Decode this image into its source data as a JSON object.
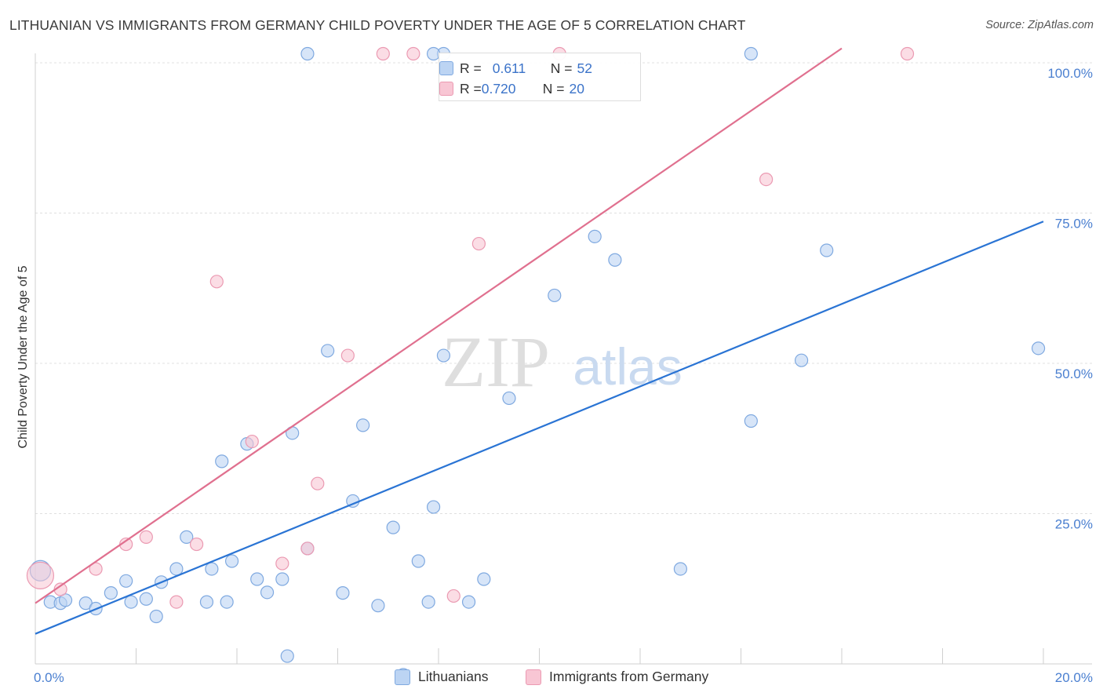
{
  "title": "LITHUANIAN VS IMMIGRANTS FROM GERMANY CHILD POVERTY UNDER THE AGE OF 5 CORRELATION CHART",
  "source": "Source: ZipAtlas.com",
  "watermark": {
    "zip": "ZIP",
    "atlas": "atlas"
  },
  "colors": {
    "blue_fill": "#bcd4f3",
    "blue_stroke": "#7fa9e0",
    "blue_line": "#2a74d4",
    "pink_fill": "#f8c6d4",
    "pink_stroke": "#eb9ab2",
    "pink_line": "#e0708f",
    "tick_text": "#4a7fd0"
  },
  "stats": [
    {
      "r_label": "R = ",
      "r_value": "0.611",
      "n_label": "N = ",
      "n_value": "52"
    },
    {
      "r_label": "R = ",
      "r_value": "0.720",
      "n_label": "N = ",
      "n_value": "20"
    }
  ],
  "legend": {
    "series1": "Lithuanians",
    "series2": "Immigrants from Germany"
  },
  "chart_data": {
    "type": "scatter",
    "title": "LITHUANIAN VS IMMIGRANTS FROM GERMANY CHILD POVERTY UNDER THE AGE OF 5 CORRELATION CHART",
    "xlabel": "",
    "ylabel": "Child Poverty Under the Age of 5",
    "xlim": [
      0,
      20
    ],
    "ylim": [
      0,
      100
    ],
    "x_tick_labels": [
      "0.0%",
      "20.0%"
    ],
    "y_tick_labels": [
      "100.0%",
      "75.0%",
      "50.0%",
      "25.0%"
    ],
    "y_tick_values": [
      100,
      75,
      50,
      25
    ],
    "grid": true,
    "series": [
      {
        "name": "Lithuanians",
        "r": 0.611,
        "n": 52,
        "trend": [
          [
            0,
            5
          ],
          [
            20,
            73.6
          ]
        ],
        "points": [
          [
            0.1,
            15.5
          ],
          [
            0.3,
            10.3
          ],
          [
            0.5,
            10.1
          ],
          [
            0.6,
            10.6
          ],
          [
            1.0,
            10.1
          ],
          [
            1.2,
            9.2
          ],
          [
            1.5,
            11.8
          ],
          [
            1.8,
            13.8
          ],
          [
            1.9,
            10.3
          ],
          [
            2.2,
            10.8
          ],
          [
            2.4,
            7.9
          ],
          [
            2.5,
            13.6
          ],
          [
            2.8,
            15.8
          ],
          [
            3.0,
            21.1
          ],
          [
            3.4,
            10.3
          ],
          [
            3.5,
            15.8
          ],
          [
            3.8,
            10.3
          ],
          [
            3.9,
            17.1
          ],
          [
            3.7,
            33.7
          ],
          [
            4.2,
            36.6
          ],
          [
            4.4,
            14.1
          ],
          [
            4.6,
            11.9
          ],
          [
            4.9,
            14.1
          ],
          [
            5.0,
            1.3
          ],
          [
            5.1,
            38.4
          ],
          [
            5.4,
            19.2
          ],
          [
            5.8,
            52.1
          ],
          [
            6.1,
            11.8
          ],
          [
            6.3,
            27.1
          ],
          [
            6.5,
            39.7
          ],
          [
            6.8,
            9.7
          ],
          [
            7.1,
            22.7
          ],
          [
            7.3,
            -1.8
          ],
          [
            7.6,
            17.1
          ],
          [
            7.8,
            10.3
          ],
          [
            7.9,
            26.1
          ],
          [
            8.1,
            51.3
          ],
          [
            8.6,
            10.3
          ],
          [
            8.9,
            14.1
          ],
          [
            9.4,
            44.2
          ],
          [
            10.3,
            61.3
          ],
          [
            11.1,
            71.1
          ],
          [
            11.5,
            67.2
          ],
          [
            12.8,
            15.8
          ],
          [
            14.2,
            40.4
          ],
          [
            15.2,
            50.5
          ],
          [
            15.7,
            68.8
          ],
          [
            19.9,
            52.5
          ],
          [
            14.2,
            101.5
          ],
          [
            8.1,
            101.5
          ],
          [
            5.4,
            101.5
          ],
          [
            7.9,
            101.5
          ]
        ]
      },
      {
        "name": "Immigrants from Germany",
        "r": 0.72,
        "n": 20,
        "trend": [
          [
            0,
            10.1
          ],
          [
            16,
            102.4
          ]
        ],
        "points": [
          [
            0.1,
            14.7
          ],
          [
            0.5,
            12.4
          ],
          [
            1.2,
            15.8
          ],
          [
            1.8,
            19.9
          ],
          [
            2.2,
            21.1
          ],
          [
            2.8,
            10.3
          ],
          [
            3.2,
            19.9
          ],
          [
            3.6,
            63.6
          ],
          [
            4.3,
            37.0
          ],
          [
            4.9,
            16.7
          ],
          [
            5.4,
            19.2
          ],
          [
            5.6,
            30.0
          ],
          [
            6.2,
            51.3
          ],
          [
            8.3,
            11.3
          ],
          [
            8.8,
            69.9
          ],
          [
            10.4,
            101.5
          ],
          [
            14.5,
            80.6
          ],
          [
            17.3,
            101.5
          ],
          [
            6.9,
            101.5
          ],
          [
            7.5,
            101.5
          ]
        ]
      }
    ]
  }
}
